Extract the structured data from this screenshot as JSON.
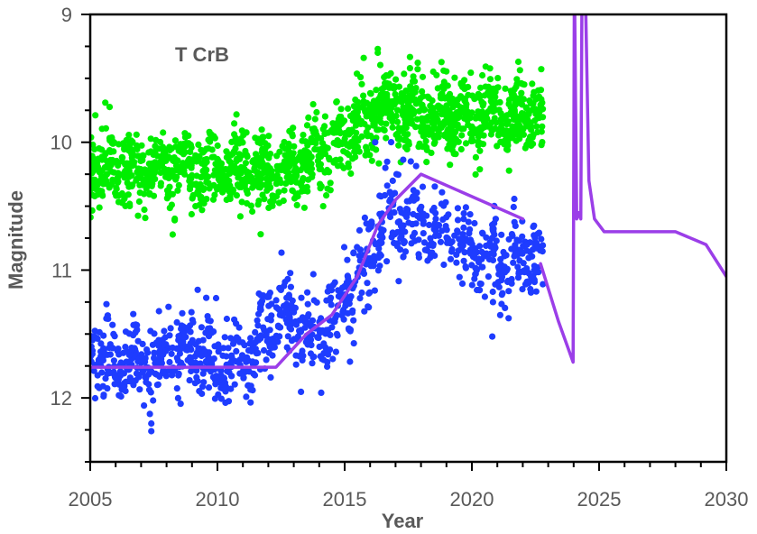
{
  "chart_data": {
    "type": "scatter",
    "title": "",
    "annotation": "T CrB",
    "xlabel": "Year",
    "ylabel": "Magnitude",
    "xlim": [
      2005,
      2030
    ],
    "ylim": [
      12.5,
      9
    ],
    "y_inverted": true,
    "x_ticks": [
      "2005",
      "2010",
      "2015",
      "2020",
      "2025",
      "2030"
    ],
    "y_ticks": [
      "9",
      "10",
      "11",
      "12"
    ],
    "grid": false,
    "legend": "none",
    "series": [
      {
        "kind": "scatter",
        "color": "#00ee00",
        "x_range": [
          2005,
          2022.8
        ],
        "trend": [
          [
            2005,
            10.2
          ],
          [
            2010,
            10.2
          ],
          [
            2013,
            10.2
          ],
          [
            2014.5,
            10.05
          ],
          [
            2015.5,
            9.85
          ],
          [
            2016.5,
            9.75
          ],
          [
            2020,
            9.8
          ],
          [
            2022.8,
            9.8
          ]
        ],
        "spread": 0.14,
        "count": 1600,
        "outliers": [
          [
            2016.3,
            9.27
          ],
          [
            2016.3,
            9.3
          ],
          [
            2011.7,
            10.72
          ],
          [
            2010.9,
            10.58
          ]
        ]
      },
      {
        "kind": "scatter",
        "color": "#1e3cff",
        "x_range": [
          2005,
          2022.8
        ],
        "trend": [
          [
            2005,
            11.7
          ],
          [
            2007,
            11.75
          ],
          [
            2009,
            11.6
          ],
          [
            2011,
            11.75
          ],
          [
            2012.5,
            11.35
          ],
          [
            2014,
            11.55
          ],
          [
            2015,
            11.2
          ],
          [
            2016,
            10.9
          ],
          [
            2016.8,
            10.55
          ],
          [
            2018,
            10.65
          ],
          [
            2020,
            10.85
          ],
          [
            2021.5,
            10.95
          ],
          [
            2022.8,
            10.85
          ]
        ],
        "spread": 0.16,
        "count": 1100,
        "outliers": [
          [
            2007.4,
            12.2
          ],
          [
            2007.4,
            12.26
          ],
          [
            2016.2,
            10.0
          ],
          [
            2017.6,
            10.15
          ],
          [
            2020.8,
            11.52
          ],
          [
            2016.6,
            10.2
          ]
        ]
      },
      {
        "kind": "line",
        "color": "#9b3ee8",
        "x": [
          2005,
          2012.3,
          2013.5,
          2014.5,
          2015.5,
          2016.3,
          2017,
          2018,
          2022
        ],
        "y": [
          11.76,
          11.76,
          11.5,
          11.35,
          11.05,
          10.65,
          10.45,
          10.25,
          10.6
        ]
      },
      {
        "kind": "line",
        "color": "#9b3ee8",
        "x": [
          2022.7,
          2023.4,
          2023.98,
          2024.03,
          2024.12,
          2024.2,
          2024.28,
          2024.33,
          2024.45,
          2024.6,
          2024.82,
          2025.2,
          2028,
          2029.2,
          2030
        ],
        "y": [
          10.95,
          11.4,
          11.72,
          8.7,
          10.6,
          10.55,
          10.6,
          8.7,
          8.7,
          10.3,
          10.6,
          10.7,
          10.7,
          10.8,
          11.05
        ]
      }
    ]
  }
}
